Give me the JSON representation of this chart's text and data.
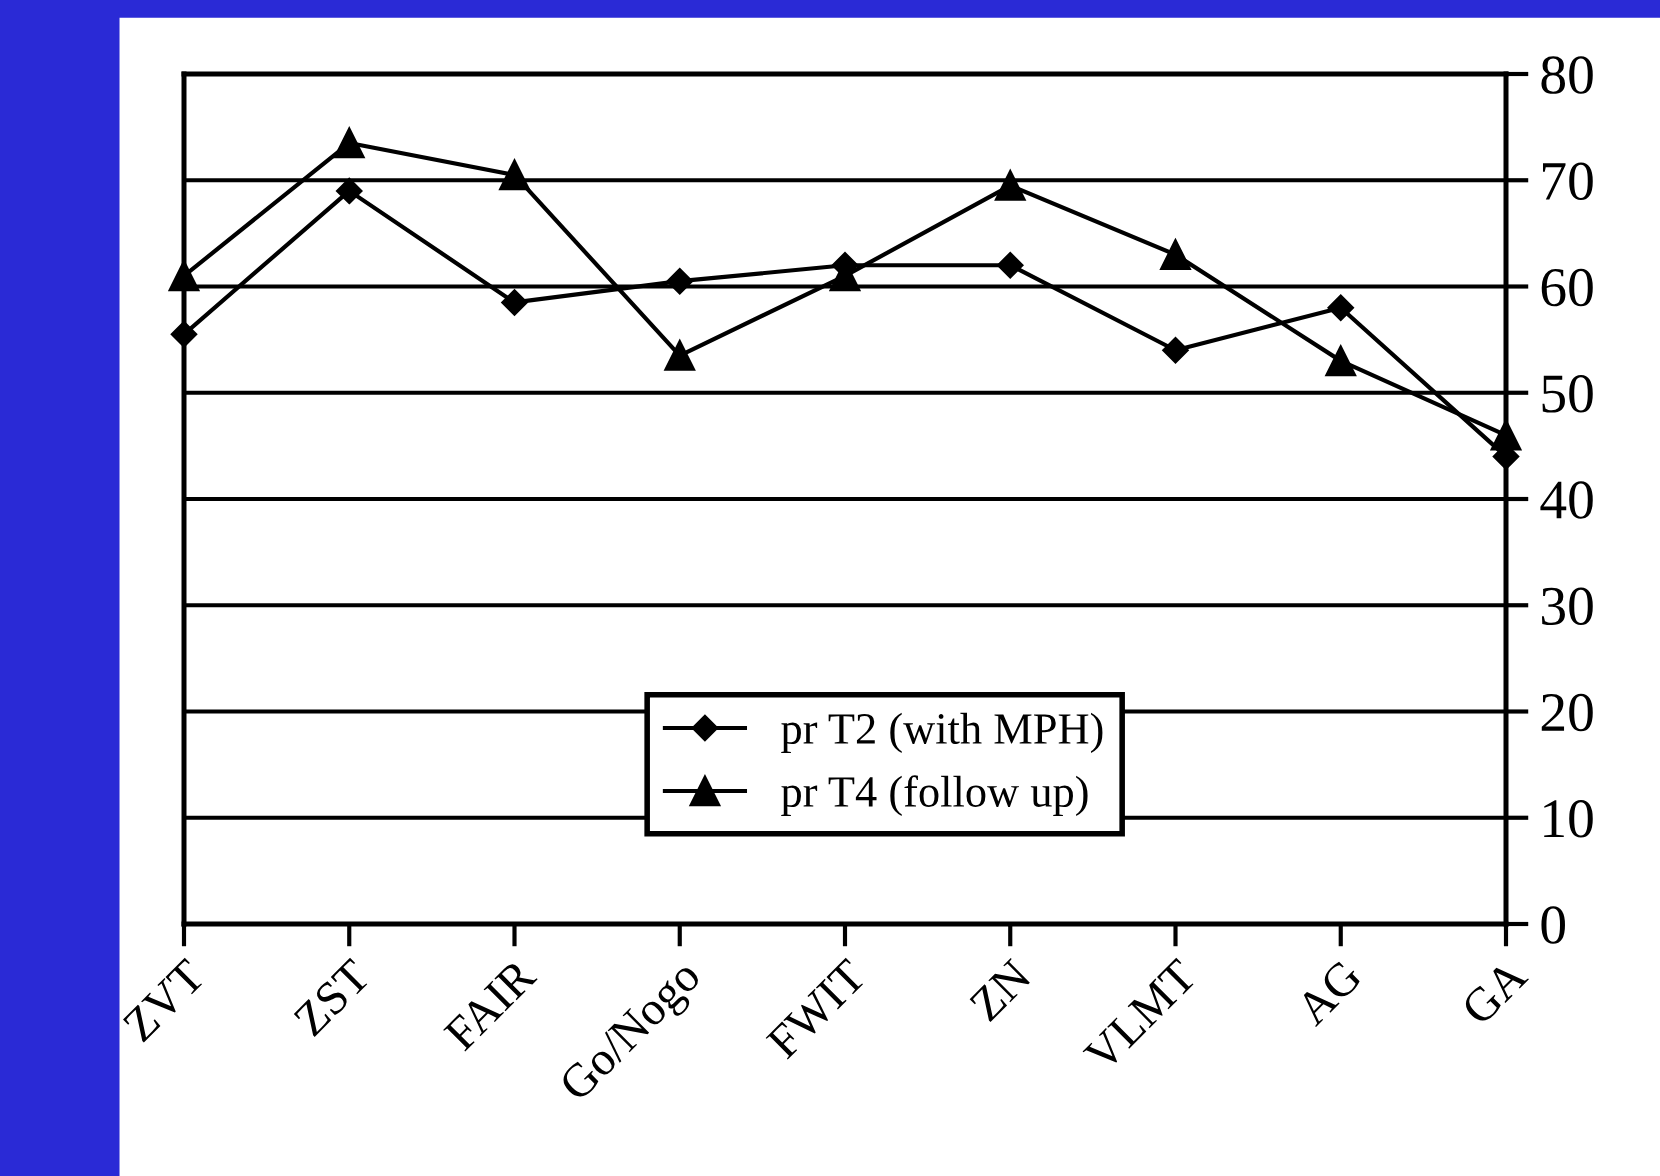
{
  "chart_data": {
    "type": "line",
    "categories": [
      "ZVT",
      "ZST",
      "FAIR",
      "Go/Nogo",
      "FWIT",
      "ZN",
      "VLMT",
      "AG",
      "GA"
    ],
    "series": [
      {
        "name": "pr T2 (with MPH)",
        "color": "#000000",
        "marker": "diamond",
        "values": [
          55.5,
          69,
          58.5,
          60.5,
          62,
          62,
          54,
          58,
          44
        ]
      },
      {
        "name": "pr T4 (follow up)",
        "color": "#000000",
        "marker": "triangle",
        "values": [
          61,
          73.5,
          70.5,
          53.5,
          61,
          69.5,
          63,
          53,
          46
        ]
      }
    ],
    "ylim": [
      0,
      80
    ],
    "yticks": [
      0,
      10,
      20,
      30,
      40,
      50,
      60,
      70,
      80
    ],
    "grid": "y",
    "legend": "bottom",
    "line_style": "solid"
  }
}
